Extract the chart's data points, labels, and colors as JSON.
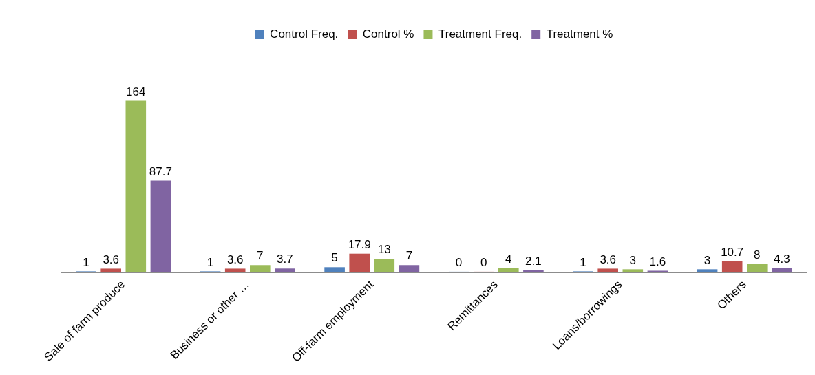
{
  "chart_data": {
    "type": "bar",
    "categories": [
      "Sale of farm produce",
      "Business or other …",
      "Off-farm employment",
      "Remittances",
      "Loans/borrowings",
      "Others"
    ],
    "series": [
      {
        "name": "Control Freq.",
        "color": "#4f81bd",
        "values": [
          1,
          1,
          5,
          0,
          1,
          3
        ]
      },
      {
        "name": "Control %",
        "color": "#c0504d",
        "values": [
          3.6,
          3.6,
          17.9,
          0,
          3.6,
          10.7
        ]
      },
      {
        "name": "Treatment Freq.",
        "color": "#9bbb59",
        "values": [
          164,
          7,
          13,
          4,
          3,
          8
        ]
      },
      {
        "name": "Treatment %",
        "color": "#8064a2",
        "values": [
          87.7,
          3.7,
          7,
          2.1,
          1.6,
          4.3
        ]
      }
    ],
    "data_labels": true,
    "grid": false,
    "legend": "top",
    "tick_labels": "x"
  }
}
